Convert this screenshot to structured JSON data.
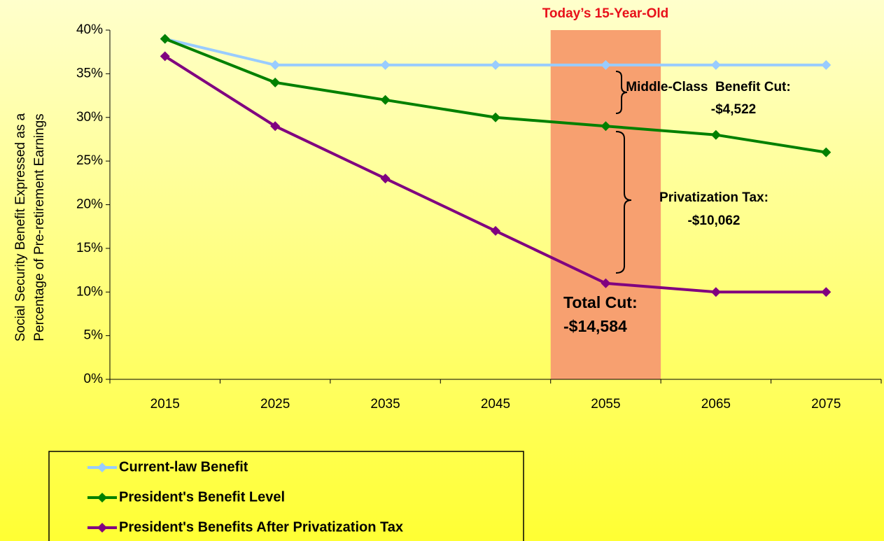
{
  "chart_data": {
    "type": "line",
    "ylabel": [
      "Social Security Benefit Expressed as a",
      "Percentage of Pre-retirement Earnings"
    ],
    "categories": [
      "2015",
      "2025",
      "2035",
      "2045",
      "2055",
      "2065",
      "2075"
    ],
    "series": [
      {
        "name": "Current-law Benefit",
        "color": "#99ccff",
        "values": [
          39,
          36,
          36,
          36,
          36,
          36,
          36
        ]
      },
      {
        "name": "President's Benefit Level",
        "color": "#008000",
        "values": [
          39,
          34,
          32,
          30,
          29,
          28,
          26
        ]
      },
      {
        "name": "President's Benefits After Privatization Tax",
        "color": "#800080",
        "values": [
          37,
          29,
          23,
          17,
          11,
          10,
          10
        ]
      }
    ],
    "ylim": [
      0,
      40
    ],
    "yticks": [
      {
        "value": 0,
        "label": "0%"
      },
      {
        "value": 5,
        "label": "5%"
      },
      {
        "value": 10,
        "label": "10%"
      },
      {
        "value": 15,
        "label": "15%"
      },
      {
        "value": 20,
        "label": "20%"
      },
      {
        "value": 25,
        "label": "25%"
      },
      {
        "value": 30,
        "label": "30%"
      },
      {
        "value": 35,
        "label": "35%"
      },
      {
        "value": 40,
        "label": "40%"
      }
    ],
    "annotations": {
      "highlight": "Today’s 15-Year-Old",
      "middle_class_cut": [
        "Middle-Class  Benefit Cut:",
        "-$4,522"
      ],
      "privatization_tax": [
        "Privatization Tax:",
        "-$10,062"
      ],
      "total_cut": [
        "Total Cut:",
        "-$14,584"
      ]
    },
    "legend": "bottom-left"
  }
}
